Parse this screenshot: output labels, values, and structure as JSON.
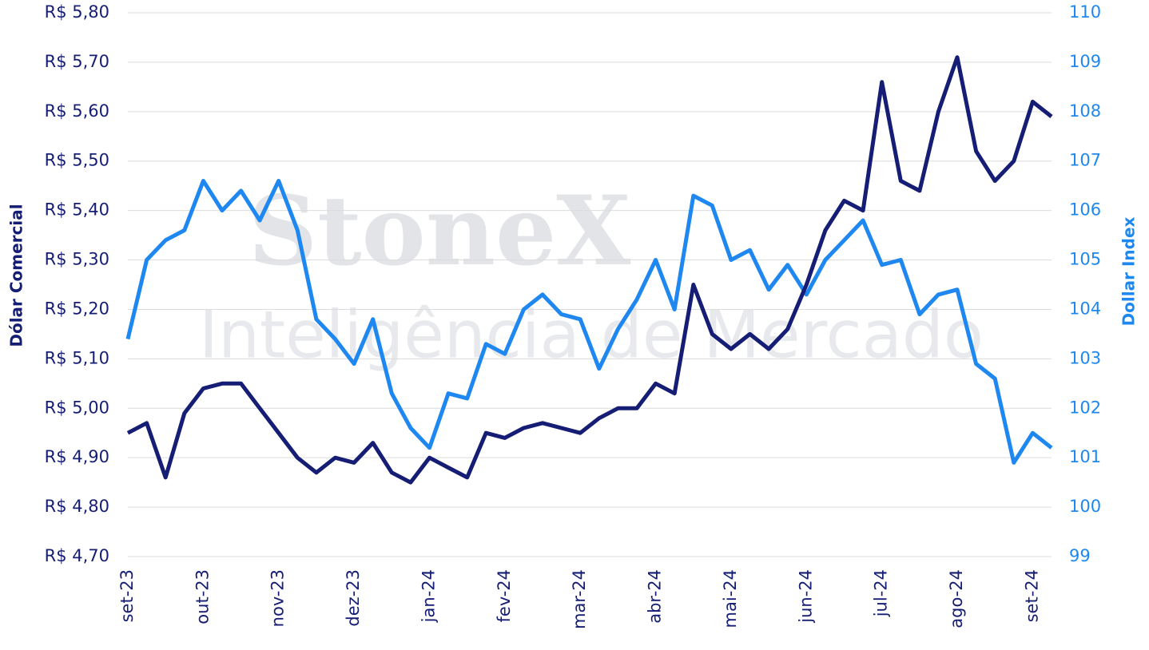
{
  "chart_data": {
    "type": "line",
    "watermark": [
      "StoneX",
      "Inteligência de Mercado"
    ],
    "ylabel": "Dólar Comercial",
    "y2label": "Dollar Index",
    "categories": [
      "set-23",
      null,
      null,
      null,
      "out-23",
      null,
      null,
      null,
      "nov-23",
      null,
      null,
      null,
      "dez-23",
      null,
      null,
      null,
      "jan-24",
      null,
      null,
      null,
      "fev-24",
      null,
      null,
      null,
      "mar-24",
      null,
      null,
      null,
      "abr-24",
      null,
      null,
      null,
      "mai-24",
      null,
      null,
      null,
      "jun-24",
      null,
      null,
      null,
      "jul-24",
      null,
      null,
      null,
      "ago-24",
      null,
      null,
      null,
      "set-24",
      null
    ],
    "series": [
      {
        "color": "#151d74",
        "axis": "y",
        "values": [
          4.95,
          4.97,
          4.86,
          4.99,
          5.04,
          5.05,
          5.05,
          5.0,
          4.95,
          4.9,
          4.87,
          4.9,
          4.89,
          4.93,
          4.87,
          4.85,
          4.9,
          4.88,
          4.86,
          4.95,
          4.94,
          4.96,
          4.97,
          4.96,
          4.95,
          4.98,
          5.0,
          5.0,
          5.05,
          5.03,
          5.25,
          5.15,
          5.12,
          5.15,
          5.12,
          5.16,
          5.25,
          5.36,
          5.42,
          5.4,
          5.66,
          5.46,
          5.44,
          5.6,
          5.71,
          5.52,
          5.46,
          5.5,
          5.62,
          5.59
        ]
      },
      {
        "color": "#1e88f0",
        "axis": "y2",
        "values": [
          103.4,
          105.0,
          105.4,
          105.6,
          106.6,
          106.0,
          106.4,
          105.8,
          106.6,
          105.6,
          103.8,
          103.4,
          102.9,
          103.8,
          102.3,
          101.6,
          101.2,
          102.3,
          102.2,
          103.3,
          103.1,
          104.0,
          104.3,
          103.9,
          103.8,
          102.8,
          103.6,
          104.2,
          105.0,
          104.0,
          106.3,
          106.1,
          105.0,
          105.2,
          104.4,
          104.9,
          104.3,
          105.0,
          105.4,
          105.8,
          104.9,
          105.0,
          103.9,
          104.3,
          104.4,
          102.9,
          102.6,
          100.9,
          101.5,
          101.2
        ]
      }
    ],
    "ylim": [
      4.7,
      5.8
    ],
    "yticks": [
      {
        "value": 4.7,
        "label": "R$ 4,70"
      },
      {
        "value": 4.8,
        "label": "R$ 4,80"
      },
      {
        "value": 4.9,
        "label": "R$ 4,90"
      },
      {
        "value": 5.0,
        "label": "R$ 5,00"
      },
      {
        "value": 5.1,
        "label": "R$ 5,10"
      },
      {
        "value": 5.2,
        "label": "R$ 5,20"
      },
      {
        "value": 5.3,
        "label": "R$ 5,30"
      },
      {
        "value": 5.4,
        "label": "R$ 5,40"
      },
      {
        "value": 5.5,
        "label": "R$ 5,50"
      },
      {
        "value": 5.6,
        "label": "R$ 5,60"
      },
      {
        "value": 5.7,
        "label": "R$ 5,70"
      },
      {
        "value": 5.8,
        "label": "R$ 5,80"
      }
    ],
    "y2lim": [
      99,
      110
    ],
    "y2ticks": [
      99,
      100,
      101,
      102,
      103,
      104,
      105,
      106,
      107,
      108,
      109,
      110
    ],
    "grid": true
  }
}
